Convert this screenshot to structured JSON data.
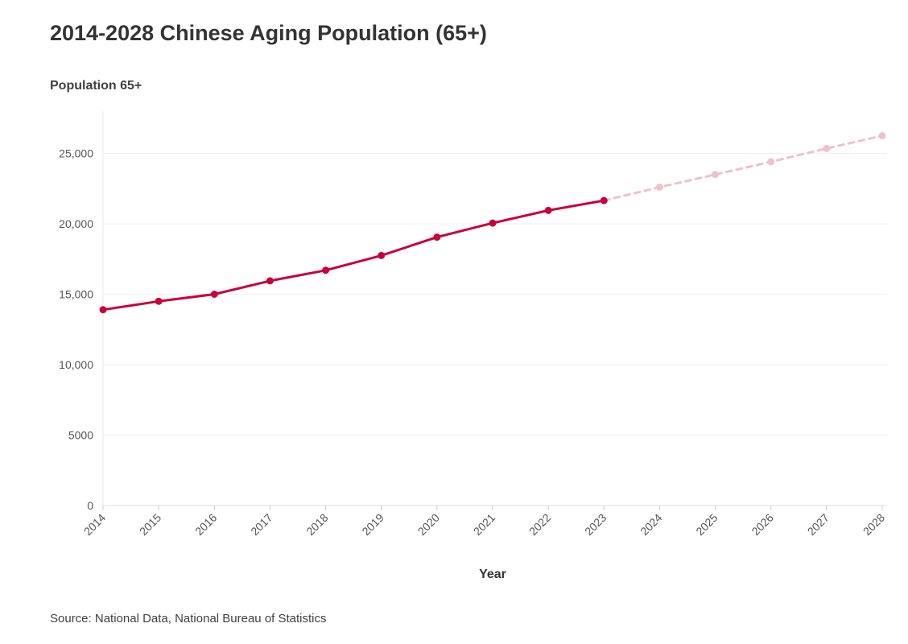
{
  "page": {
    "title": "2014-2028 Chinese Aging Population (65+)",
    "source": "Source: National Data, National Bureau of Statistics"
  },
  "chart_data": {
    "type": "line",
    "title": "2014-2028 Chinese Aging Population (65+)",
    "ylabel": "Population 65+",
    "xlabel": "Year",
    "x": [
      "2014",
      "2015",
      "2016",
      "2017",
      "2018",
      "2019",
      "2020",
      "2021",
      "2022",
      "2023",
      "2024",
      "2025",
      "2026",
      "2027",
      "2028"
    ],
    "ylim": [
      0,
      28000
    ],
    "yticks": [
      0,
      5000,
      10000,
      15000,
      20000,
      25000
    ],
    "ytick_labels": [
      "0",
      "5000",
      "10,000",
      "15,000",
      "20,000",
      "25,000"
    ],
    "grid": true,
    "legend": "none",
    "series": [
      {
        "style": "solid",
        "color": "#c8003c",
        "x": [
          "2014",
          "2015",
          "2016",
          "2017",
          "2018",
          "2019",
          "2020",
          "2021",
          "2022",
          "2023"
        ],
        "values": [
          13900,
          14500,
          15000,
          15950,
          16700,
          17750,
          19050,
          20050,
          20950,
          21650
        ]
      },
      {
        "style": "dashed",
        "color": "#ecc2cd",
        "x": [
          "2023",
          "2024",
          "2025",
          "2026",
          "2027",
          "2028"
        ],
        "values": [
          21650,
          22600,
          23500,
          24400,
          25350,
          26250
        ]
      }
    ]
  }
}
